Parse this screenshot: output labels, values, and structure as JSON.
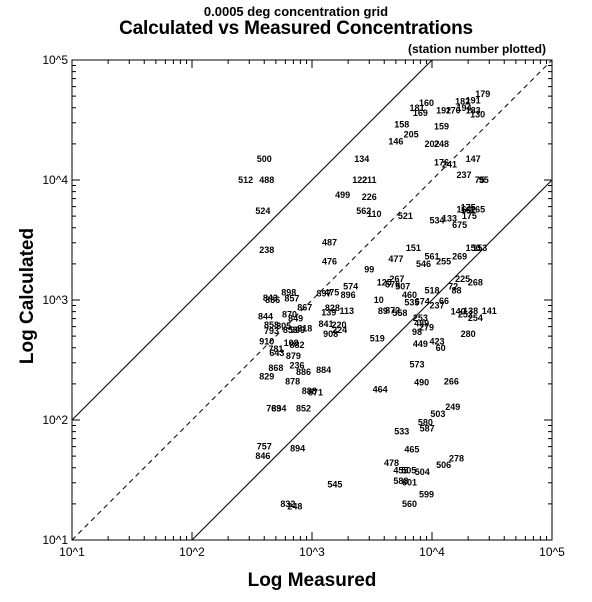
{
  "chart_data": {
    "type": "scatter",
    "subtitle": "0.0005 deg concentration grid",
    "title": "Calculated vs Measured Concentrations",
    "annotation": "(station number plotted)",
    "xlabel": "Log Measured",
    "ylabel": "Log Calculated",
    "x_scale": "log",
    "y_scale": "log",
    "xlim": [
      10,
      100000
    ],
    "ylim": [
      10,
      100000
    ],
    "x_ticks": [
      "10^1",
      "10^2",
      "10^3",
      "10^4",
      "10^5"
    ],
    "y_ticks": [
      "10^1",
      "10^2",
      "10^3",
      "10^4",
      "10^5"
    ],
    "reference_lines": [
      {
        "style": "solid",
        "relation": "calculated = measured x 10"
      },
      {
        "style": "dashed",
        "relation": "calculated = measured"
      },
      {
        "style": "solid",
        "relation": "calculated = measured / 10"
      }
    ],
    "points": [
      {
        "label": "500",
        "x": 400,
        "y": 15000
      },
      {
        "label": "512",
        "x": 280,
        "y": 10000
      },
      {
        "label": "488",
        "x": 420,
        "y": 10000
      },
      {
        "label": "524",
        "x": 390,
        "y": 5500
      },
      {
        "label": "238",
        "x": 420,
        "y": 2600
      },
      {
        "label": "487",
        "x": 1400,
        "y": 3000
      },
      {
        "label": "476",
        "x": 1400,
        "y": 2100
      },
      {
        "label": "499",
        "x": 1800,
        "y": 7500
      },
      {
        "label": "562",
        "x": 2700,
        "y": 5500
      },
      {
        "label": "110",
        "x": 3300,
        "y": 5200
      },
      {
        "label": "226",
        "x": 3000,
        "y": 7200
      },
      {
        "label": "134",
        "x": 2600,
        "y": 15000
      },
      {
        "label": "122",
        "x": 2500,
        "y": 10000
      },
      {
        "label": "211",
        "x": 3000,
        "y": 10000
      },
      {
        "label": "146",
        "x": 5000,
        "y": 21000
      },
      {
        "label": "158",
        "x": 5600,
        "y": 29000
      },
      {
        "label": "205",
        "x": 6700,
        "y": 24000
      },
      {
        "label": "181",
        "x": 7500,
        "y": 40000
      },
      {
        "label": "169",
        "x": 8000,
        "y": 36000
      },
      {
        "label": "160",
        "x": 9000,
        "y": 44000
      },
      {
        "label": "192",
        "x": 12500,
        "y": 38000
      },
      {
        "label": "159",
        "x": 12000,
        "y": 28000
      },
      {
        "label": "202",
        "x": 10000,
        "y": 20000
      },
      {
        "label": "248",
        "x": 12000,
        "y": 20000
      },
      {
        "label": "182",
        "x": 18000,
        "y": 45000
      },
      {
        "label": "191",
        "x": 22000,
        "y": 46000
      },
      {
        "label": "179",
        "x": 26500,
        "y": 52000
      },
      {
        "label": "170",
        "x": 15000,
        "y": 38000
      },
      {
        "label": "194",
        "x": 18500,
        "y": 40000
      },
      {
        "label": "183",
        "x": 22000,
        "y": 38000
      },
      {
        "label": "130",
        "x": 24000,
        "y": 35000
      },
      {
        "label": "176",
        "x": 12000,
        "y": 14000
      },
      {
        "label": "241",
        "x": 14000,
        "y": 13500
      },
      {
        "label": "237",
        "x": 18500,
        "y": 11000
      },
      {
        "label": "147",
        "x": 22000,
        "y": 15000
      },
      {
        "label": "95",
        "x": 27000,
        "y": 10000
      },
      {
        "label": "75",
        "x": 25000,
        "y": 10000
      },
      {
        "label": "175",
        "x": 20000,
        "y": 5900
      },
      {
        "label": "165",
        "x": 24000,
        "y": 5700
      },
      {
        "label": "164",
        "x": 18500,
        "y": 5700
      },
      {
        "label": "162",
        "x": 20000,
        "y": 5600
      },
      {
        "label": "175",
        "x": 20500,
        "y": 5000
      },
      {
        "label": "675",
        "x": 17000,
        "y": 4200
      },
      {
        "label": "133",
        "x": 14000,
        "y": 4800
      },
      {
        "label": "150",
        "x": 22000,
        "y": 2700
      },
      {
        "label": "153",
        "x": 25000,
        "y": 2700
      },
      {
        "label": "269",
        "x": 17000,
        "y": 2300
      },
      {
        "label": "225",
        "x": 18000,
        "y": 1500
      },
      {
        "label": "268",
        "x": 23000,
        "y": 1400
      },
      {
        "label": "88",
        "x": 16000,
        "y": 1200
      },
      {
        "label": "72",
        "x": 15000,
        "y": 1300
      },
      {
        "label": "140",
        "x": 16500,
        "y": 800
      },
      {
        "label": "252",
        "x": 19000,
        "y": 760
      },
      {
        "label": "138",
        "x": 21000,
        "y": 810
      },
      {
        "label": "254",
        "x": 23000,
        "y": 710
      },
      {
        "label": "141",
        "x": 30000,
        "y": 810
      },
      {
        "label": "280",
        "x": 20000,
        "y": 520
      },
      {
        "label": "255",
        "x": 12500,
        "y": 2100
      },
      {
        "label": "561",
        "x": 10000,
        "y": 2300
      },
      {
        "label": "546",
        "x": 8500,
        "y": 2000
      },
      {
        "label": "477",
        "x": 5000,
        "y": 2200
      },
      {
        "label": "151",
        "x": 7000,
        "y": 2700
      },
      {
        "label": "521",
        "x": 6000,
        "y": 5000
      },
      {
        "label": "534",
        "x": 11000,
        "y": 4600
      },
      {
        "label": "125",
        "x": 4000,
        "y": 1400
      },
      {
        "label": "507",
        "x": 5700,
        "y": 1300
      },
      {
        "label": "267",
        "x": 5100,
        "y": 1500
      },
      {
        "label": "576",
        "x": 4700,
        "y": 1350
      },
      {
        "label": "460",
        "x": 6500,
        "y": 1100
      },
      {
        "label": "518",
        "x": 10000,
        "y": 1200
      },
      {
        "label": "535",
        "x": 6800,
        "y": 950
      },
      {
        "label": "674",
        "x": 8300,
        "y": 970
      },
      {
        "label": "237",
        "x": 11000,
        "y": 900
      },
      {
        "label": "66",
        "x": 12600,
        "y": 980
      },
      {
        "label": "253",
        "x": 8000,
        "y": 710
      },
      {
        "label": "489",
        "x": 8200,
        "y": 640
      },
      {
        "label": "279",
        "x": 9000,
        "y": 590
      },
      {
        "label": "98",
        "x": 7500,
        "y": 540
      },
      {
        "label": "449",
        "x": 8000,
        "y": 430
      },
      {
        "label": "423",
        "x": 11000,
        "y": 450
      },
      {
        "label": "60",
        "x": 11800,
        "y": 400
      },
      {
        "label": "573",
        "x": 7500,
        "y": 290
      },
      {
        "label": "266",
        "x": 14500,
        "y": 210
      },
      {
        "label": "490",
        "x": 8200,
        "y": 205
      },
      {
        "label": "249",
        "x": 14900,
        "y": 128
      },
      {
        "label": "503",
        "x": 11200,
        "y": 112
      },
      {
        "label": "580",
        "x": 8800,
        "y": 95
      },
      {
        "label": "587",
        "x": 9100,
        "y": 85
      },
      {
        "label": "278",
        "x": 16000,
        "y": 48
      },
      {
        "label": "506",
        "x": 12500,
        "y": 42
      },
      {
        "label": "533",
        "x": 5600,
        "y": 80
      },
      {
        "label": "465",
        "x": 6800,
        "y": 57
      },
      {
        "label": "478",
        "x": 4600,
        "y": 44
      },
      {
        "label": "455",
        "x": 5500,
        "y": 38
      },
      {
        "label": "505",
        "x": 6400,
        "y": 38
      },
      {
        "label": "504",
        "x": 8300,
        "y": 37
      },
      {
        "label": "588",
        "x": 5500,
        "y": 31
      },
      {
        "label": "601",
        "x": 6500,
        "y": 30
      },
      {
        "label": "599",
        "x": 9000,
        "y": 24
      },
      {
        "label": "560",
        "x": 6500,
        "y": 20
      },
      {
        "label": "545",
        "x": 1550,
        "y": 29
      },
      {
        "label": "519",
        "x": 3500,
        "y": 480
      },
      {
        "label": "89",
        "x": 3900,
        "y": 810
      },
      {
        "label": "872",
        "x": 4700,
        "y": 820
      },
      {
        "label": "558",
        "x": 5400,
        "y": 780
      },
      {
        "label": "10",
        "x": 3600,
        "y": 1000
      },
      {
        "label": "464",
        "x": 3700,
        "y": 180
      },
      {
        "label": "99",
        "x": 3000,
        "y": 1800
      },
      {
        "label": "574",
        "x": 2100,
        "y": 1300
      },
      {
        "label": "896",
        "x": 2000,
        "y": 1100
      },
      {
        "label": "475",
        "x": 1460,
        "y": 1150
      },
      {
        "label": "897",
        "x": 1260,
        "y": 1130
      },
      {
        "label": "828",
        "x": 1480,
        "y": 860
      },
      {
        "label": "139",
        "x": 1380,
        "y": 790
      },
      {
        "label": "113",
        "x": 1950,
        "y": 810
      },
      {
        "label": "841",
        "x": 1310,
        "y": 630
      },
      {
        "label": "220",
        "x": 1680,
        "y": 620
      },
      {
        "label": "224",
        "x": 1700,
        "y": 560
      },
      {
        "label": "908",
        "x": 1430,
        "y": 520
      },
      {
        "label": "884",
        "x": 1250,
        "y": 260
      },
      {
        "label": "871",
        "x": 1070,
        "y": 170
      },
      {
        "label": "886",
        "x": 850,
        "y": 250
      },
      {
        "label": "236",
        "x": 750,
        "y": 285
      },
      {
        "label": "879",
        "x": 700,
        "y": 340
      },
      {
        "label": "882",
        "x": 750,
        "y": 420
      },
      {
        "label": "108",
        "x": 670,
        "y": 440
      },
      {
        "label": "781",
        "x": 500,
        "y": 390
      },
      {
        "label": "643",
        "x": 510,
        "y": 360
      },
      {
        "label": "868",
        "x": 500,
        "y": 270
      },
      {
        "label": "829",
        "x": 420,
        "y": 230
      },
      {
        "label": "878",
        "x": 690,
        "y": 210
      },
      {
        "label": "769",
        "x": 480,
        "y": 125
      },
      {
        "label": "834",
        "x": 530,
        "y": 125
      },
      {
        "label": "888",
        "x": 950,
        "y": 175
      },
      {
        "label": "852",
        "x": 850,
        "y": 125
      },
      {
        "label": "894",
        "x": 760,
        "y": 58
      },
      {
        "label": "757",
        "x": 400,
        "y": 60
      },
      {
        "label": "846",
        "x": 390,
        "y": 50
      },
      {
        "label": "832",
        "x": 630,
        "y": 20
      },
      {
        "label": "248",
        "x": 720,
        "y": 19
      },
      {
        "label": "910",
        "x": 420,
        "y": 450
      },
      {
        "label": "793",
        "x": 460,
        "y": 550
      },
      {
        "label": "858",
        "x": 460,
        "y": 620
      },
      {
        "label": "805",
        "x": 580,
        "y": 610
      },
      {
        "label": "853",
        "x": 660,
        "y": 560
      },
      {
        "label": "909",
        "x": 760,
        "y": 560
      },
      {
        "label": "818",
        "x": 870,
        "y": 580
      },
      {
        "label": "870",
        "x": 650,
        "y": 760
      },
      {
        "label": "849",
        "x": 730,
        "y": 700
      },
      {
        "label": "867",
        "x": 870,
        "y": 870
      },
      {
        "label": "857",
        "x": 680,
        "y": 1030
      },
      {
        "label": "898",
        "x": 640,
        "y": 1150
      },
      {
        "label": "843",
        "x": 450,
        "y": 1040
      },
      {
        "label": "844",
        "x": 410,
        "y": 730
      },
      {
        "label": "836",
        "x": 470,
        "y": 1000
      }
    ]
  }
}
